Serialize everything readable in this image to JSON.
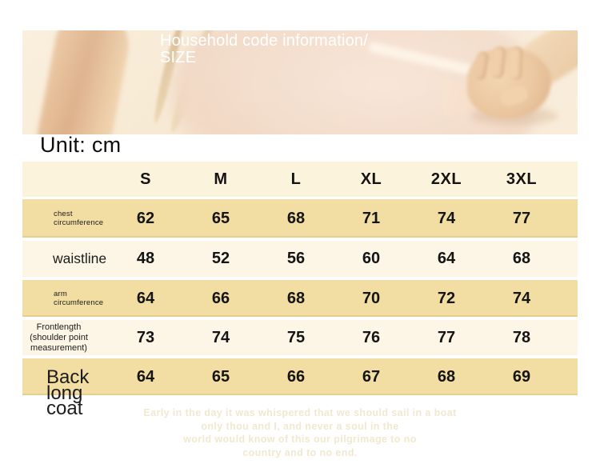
{
  "hero": {
    "title_line1": "Household code information/",
    "title_line2": "SIZE"
  },
  "unit_label": "Unit: cm",
  "size_table": {
    "columns": [
      "S",
      "M",
      "L",
      "XL",
      "2XL",
      "3XL"
    ],
    "rows": [
      {
        "label": "chest\ncircumference",
        "values": [
          62,
          65,
          68,
          71,
          74,
          77
        ]
      },
      {
        "label": "waistline",
        "values": [
          48,
          52,
          56,
          60,
          64,
          68
        ]
      },
      {
        "label": "arm\ncircumference",
        "values": [
          64,
          66,
          68,
          70,
          72,
          74
        ]
      },
      {
        "label": "Frontlength\n(shoulder point\nmeasurement)",
        "values": [
          73,
          74,
          75,
          76,
          77,
          78
        ]
      },
      {
        "label": "Back\nlong\ncoat",
        "values": [
          64,
          65,
          66,
          67,
          68,
          69
        ]
      }
    ]
  },
  "footer_poem": {
    "lines": [
      "Early in the day it was whispered that we should sail in a boat",
      "only thou and I, and never a soul in the",
      "world would know of this our pilgrimage to no",
      "country and to no end."
    ]
  },
  "colors": {
    "row_highlight": "#f2dda2",
    "row_light": "#fdf6e6",
    "header_bg": "#fcf3dc",
    "photo_bg": "#f8ecd7",
    "poem_text": "#efe9d0",
    "title_text": "#ffffff"
  }
}
